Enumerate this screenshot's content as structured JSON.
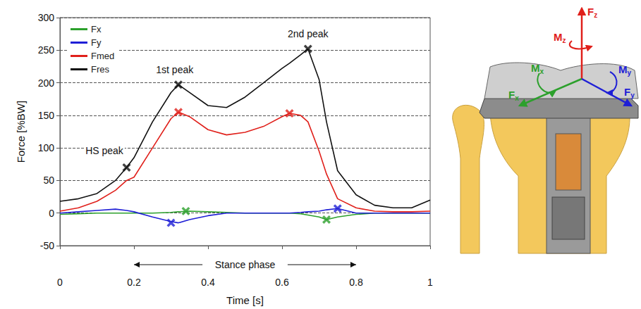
{
  "chart_data": {
    "type": "line",
    "x_label": "Time [s]",
    "y_label": "Force [%BW]",
    "xlim": [
      0,
      1
    ],
    "xticks": [
      0,
      0.2,
      0.4,
      0.6,
      0.8,
      1
    ],
    "ylim": [
      -50,
      300
    ],
    "yticks": [
      -50,
      0,
      50,
      100,
      150,
      200,
      250,
      300
    ],
    "grid": true,
    "legend": "upper left",
    "marker": "x",
    "x": [
      0,
      0.05,
      0.1,
      0.15,
      0.18,
      0.2,
      0.25,
      0.3,
      0.32,
      0.35,
      0.4,
      0.45,
      0.5,
      0.55,
      0.6,
      0.62,
      0.65,
      0.67,
      0.7,
      0.72,
      0.75,
      0.8,
      0.85,
      0.9,
      0.95,
      1
    ],
    "series": [
      {
        "name": "Fx",
        "color": "#2ca02c",
        "values": [
          -2,
          -1,
          0,
          0,
          0,
          0,
          0,
          1,
          2,
          3,
          2,
          1,
          0,
          0,
          0,
          0,
          -1,
          -3,
          -6,
          -10,
          -6,
          -2,
          0,
          0,
          0,
          0
        ],
        "peaks": [
          [
            0.34,
            3
          ],
          [
            0.72,
            -10
          ]
        ]
      },
      {
        "name": "Fy",
        "color": "#1f1fd6",
        "values": [
          0,
          2,
          4,
          6,
          4,
          2,
          -6,
          -13,
          -15,
          -10,
          -4,
          0,
          0,
          0,
          0,
          0,
          1,
          2,
          3,
          5,
          7,
          0,
          0,
          0,
          0,
          0
        ],
        "peaks": [
          [
            0.3,
            -15
          ],
          [
            0.75,
            7
          ]
        ]
      },
      {
        "name": "Fmed",
        "color": "#e0201b",
        "values": [
          3,
          8,
          18,
          35,
          50,
          55,
          100,
          145,
          155,
          148,
          128,
          120,
          124,
          133,
          148,
          153,
          150,
          140,
          95,
          60,
          22,
          8,
          3,
          2,
          2,
          3
        ],
        "peaks": [
          [
            0.32,
            155
          ],
          [
            0.62,
            153
          ]
        ]
      },
      {
        "name": "Fres",
        "color": "#111111",
        "values": [
          18,
          22,
          30,
          50,
          70,
          85,
          140,
          185,
          197,
          185,
          165,
          162,
          178,
          200,
          222,
          230,
          243,
          252,
          205,
          140,
          65,
          28,
          12,
          8,
          8,
          20
        ],
        "peaks": [
          [
            0.18,
            70
          ],
          [
            0.32,
            197
          ],
          [
            0.67,
            252
          ]
        ]
      }
    ],
    "annotations": [
      {
        "text": "HS peak",
        "x": 0.175,
        "y": 88
      },
      {
        "text": "1st peak",
        "x": 0.31,
        "y": 212
      },
      {
        "text": "2nd peak",
        "x": 0.67,
        "y": 268
      }
    ],
    "span": {
      "text": "Stance phase",
      "x_range": [
        0.2,
        0.8
      ]
    }
  },
  "diagram": {
    "labels": [
      {
        "text": "Fz",
        "color": "#e0201b"
      },
      {
        "text": "Mz",
        "color": "#e0201b"
      },
      {
        "text": "Mx",
        "color": "#2ca02c"
      },
      {
        "text": "Fx",
        "color": "#2ca02c"
      },
      {
        "text": "My",
        "color": "#1f1fd6"
      },
      {
        "text": "Fy",
        "color": "#1f1fd6"
      }
    ]
  }
}
